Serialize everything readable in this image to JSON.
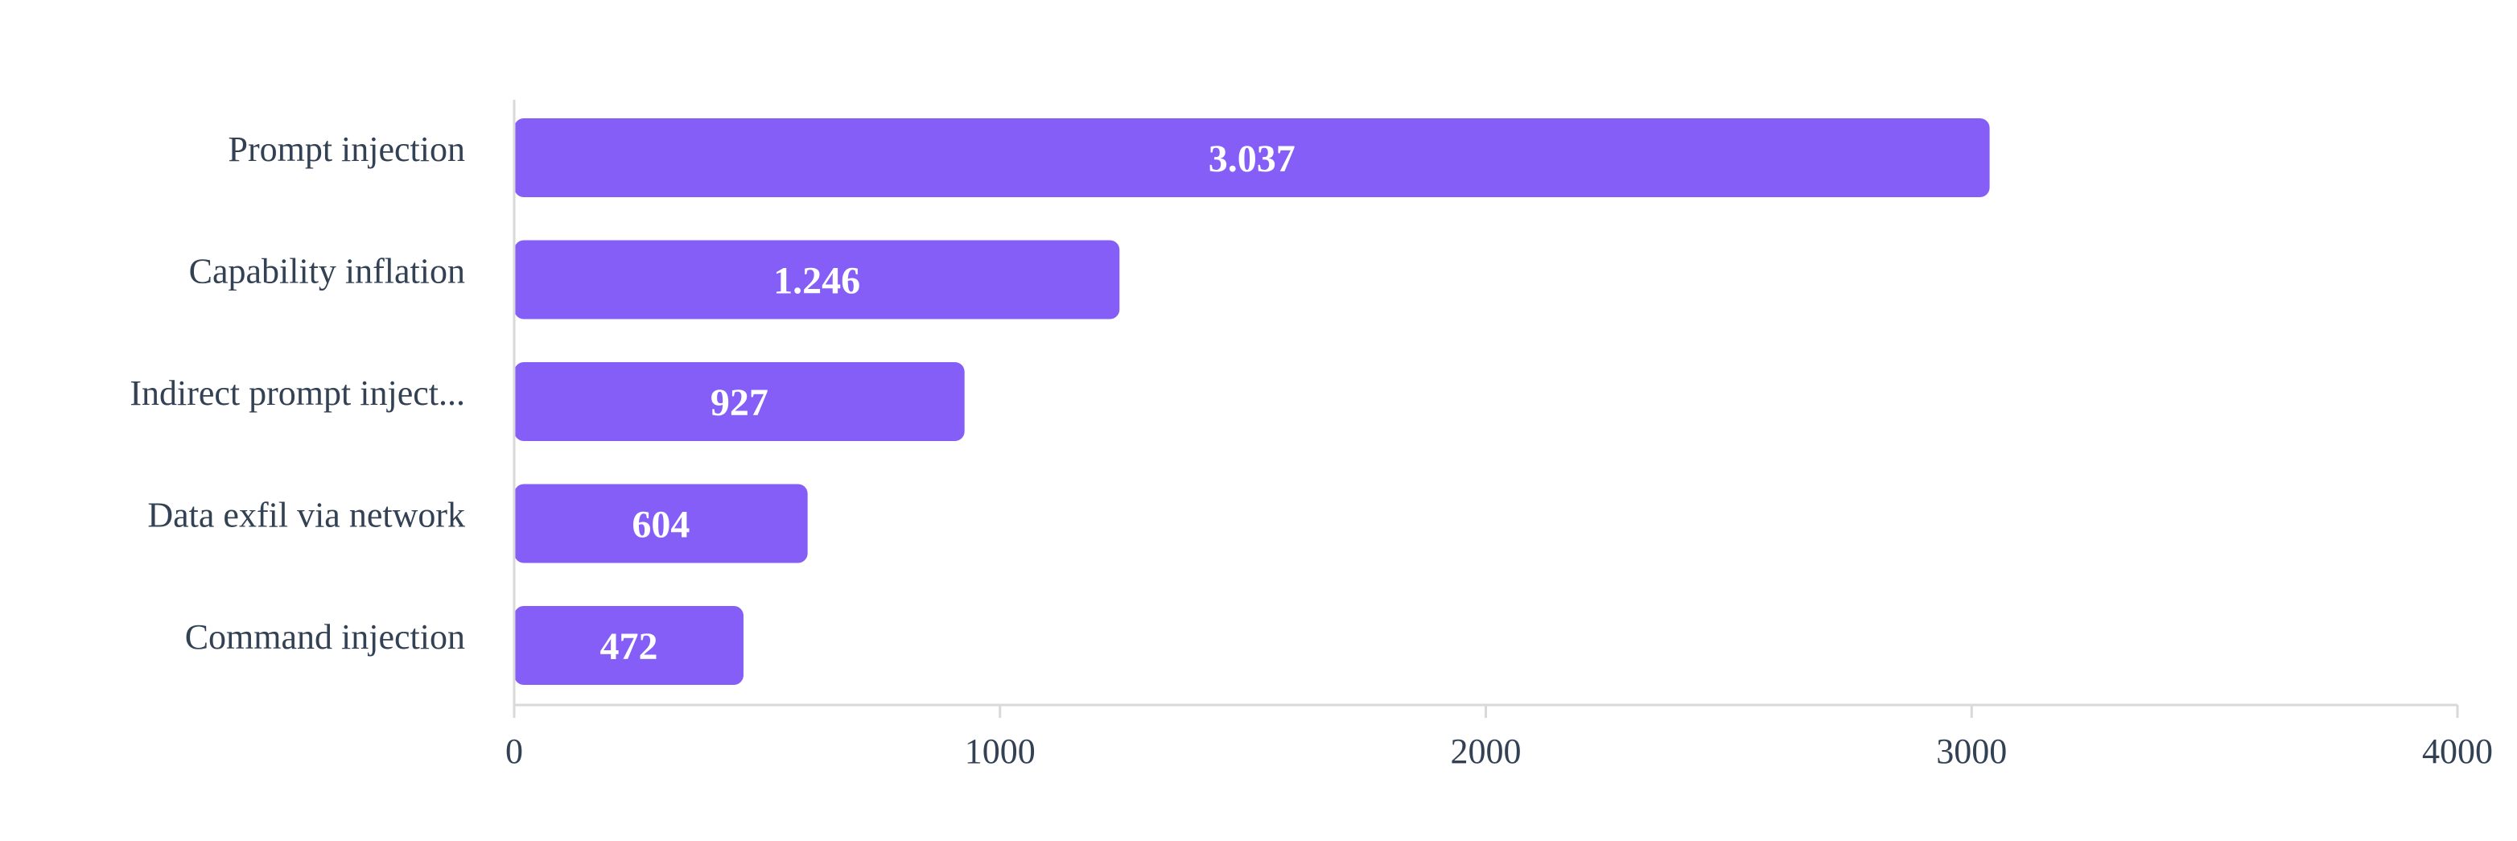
{
  "chart_data": {
    "type": "bar",
    "orientation": "horizontal",
    "title": "",
    "xlabel": "",
    "ylabel": "",
    "categories": [
      "Prompt injection",
      "Capability inflation",
      "Indirect prompt inject...",
      "Data exfil via network",
      "Command injection"
    ],
    "values": [
      3037,
      1246,
      927,
      604,
      472
    ],
    "value_labels": [
      "3.037",
      "1.246",
      "927",
      "604",
      "472"
    ],
    "xlim": [
      0,
      4000
    ],
    "x_ticks": [
      0,
      1000,
      2000,
      3000,
      4000
    ],
    "x_tick_labels": [
      "0",
      "1000",
      "2000",
      "3000",
      "4000"
    ],
    "grid": false,
    "legend": "none",
    "colors": {
      "bar": "#845ef7",
      "axis": "#d9d9d9",
      "text": "#334155",
      "bar_text": "#ffffff"
    }
  }
}
